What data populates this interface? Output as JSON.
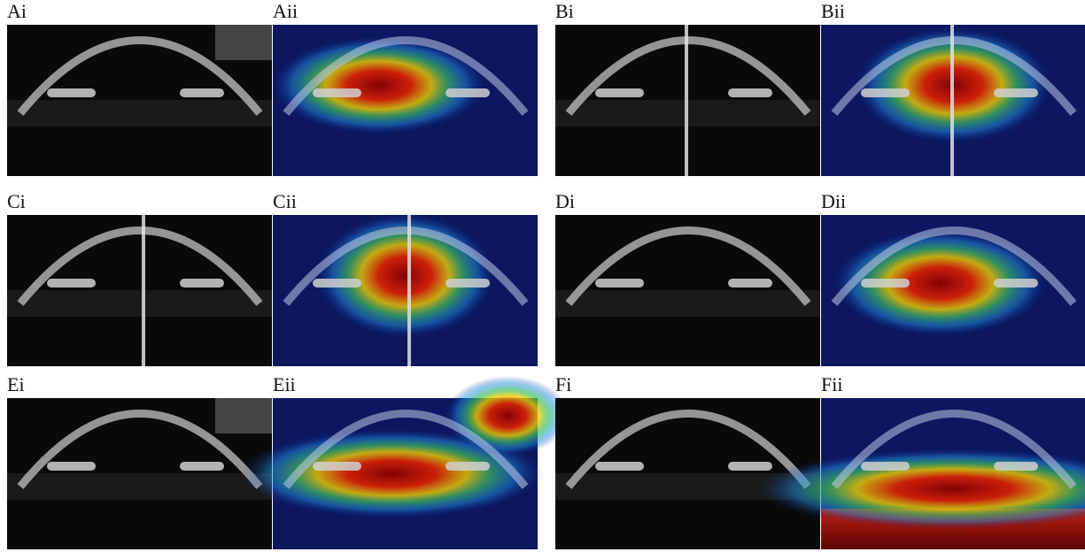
{
  "figure": {
    "panels": [
      {
        "label": "Ai"
      },
      {
        "label": "Aii"
      },
      {
        "label": "Bi"
      },
      {
        "label": "Bii"
      },
      {
        "label": "Ci"
      },
      {
        "label": "Cii"
      },
      {
        "label": "Di"
      },
      {
        "label": "Dii"
      },
      {
        "label": "Ei"
      },
      {
        "label": "Eii"
      },
      {
        "label": "Fi"
      },
      {
        "label": "Fii"
      }
    ]
  }
}
